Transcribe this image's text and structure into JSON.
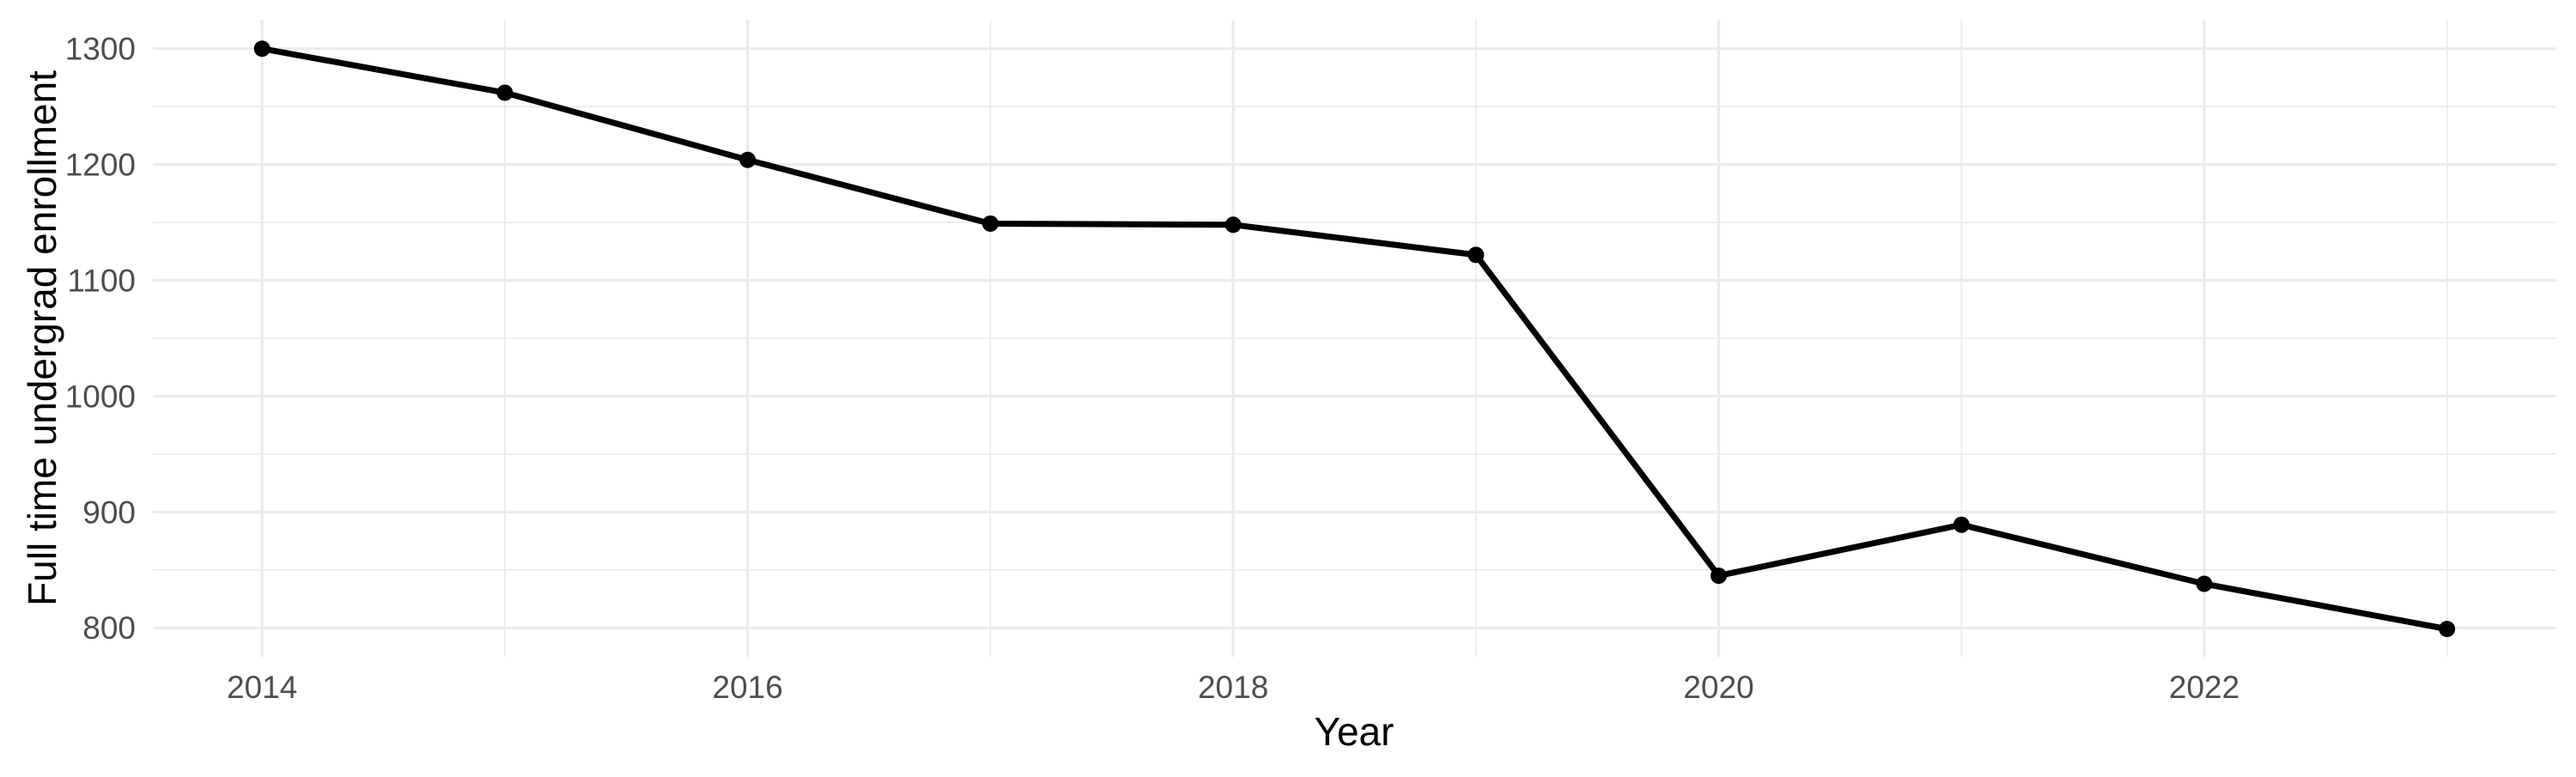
{
  "chart_data": {
    "type": "line",
    "title": "",
    "xlabel": "Year",
    "ylabel": "Full time undergrad enrollment",
    "series": [
      {
        "name": "Full time undergrad enrollment",
        "x": [
          2014,
          2015,
          2016,
          2017,
          2018,
          2019,
          2020,
          2021,
          2022,
          2023
        ],
        "values": [
          1300,
          1262,
          1204,
          1149,
          1148,
          1122,
          845,
          889,
          838,
          799
        ]
      }
    ],
    "x_ticks": [
      2014,
      2016,
      2018,
      2020,
      2022
    ],
    "x_minor_ticks": [
      2015,
      2017,
      2019,
      2021,
      2023
    ],
    "y_ticks": [
      800,
      900,
      1000,
      1100,
      1200,
      1300
    ],
    "y_minor_ticks": [
      850,
      950,
      1050,
      1150,
      1250
    ],
    "xlim": [
      2013.55,
      2023.45
    ],
    "ylim": [
      775,
      1325
    ],
    "grid": "major-and-minor",
    "legend": "none",
    "colors": {
      "background": "#ffffff",
      "line": "#000000",
      "point": "#000000",
      "grid": "#ebebeb",
      "tick_label": "#4d4d4d",
      "axis_title": "#000000"
    }
  }
}
